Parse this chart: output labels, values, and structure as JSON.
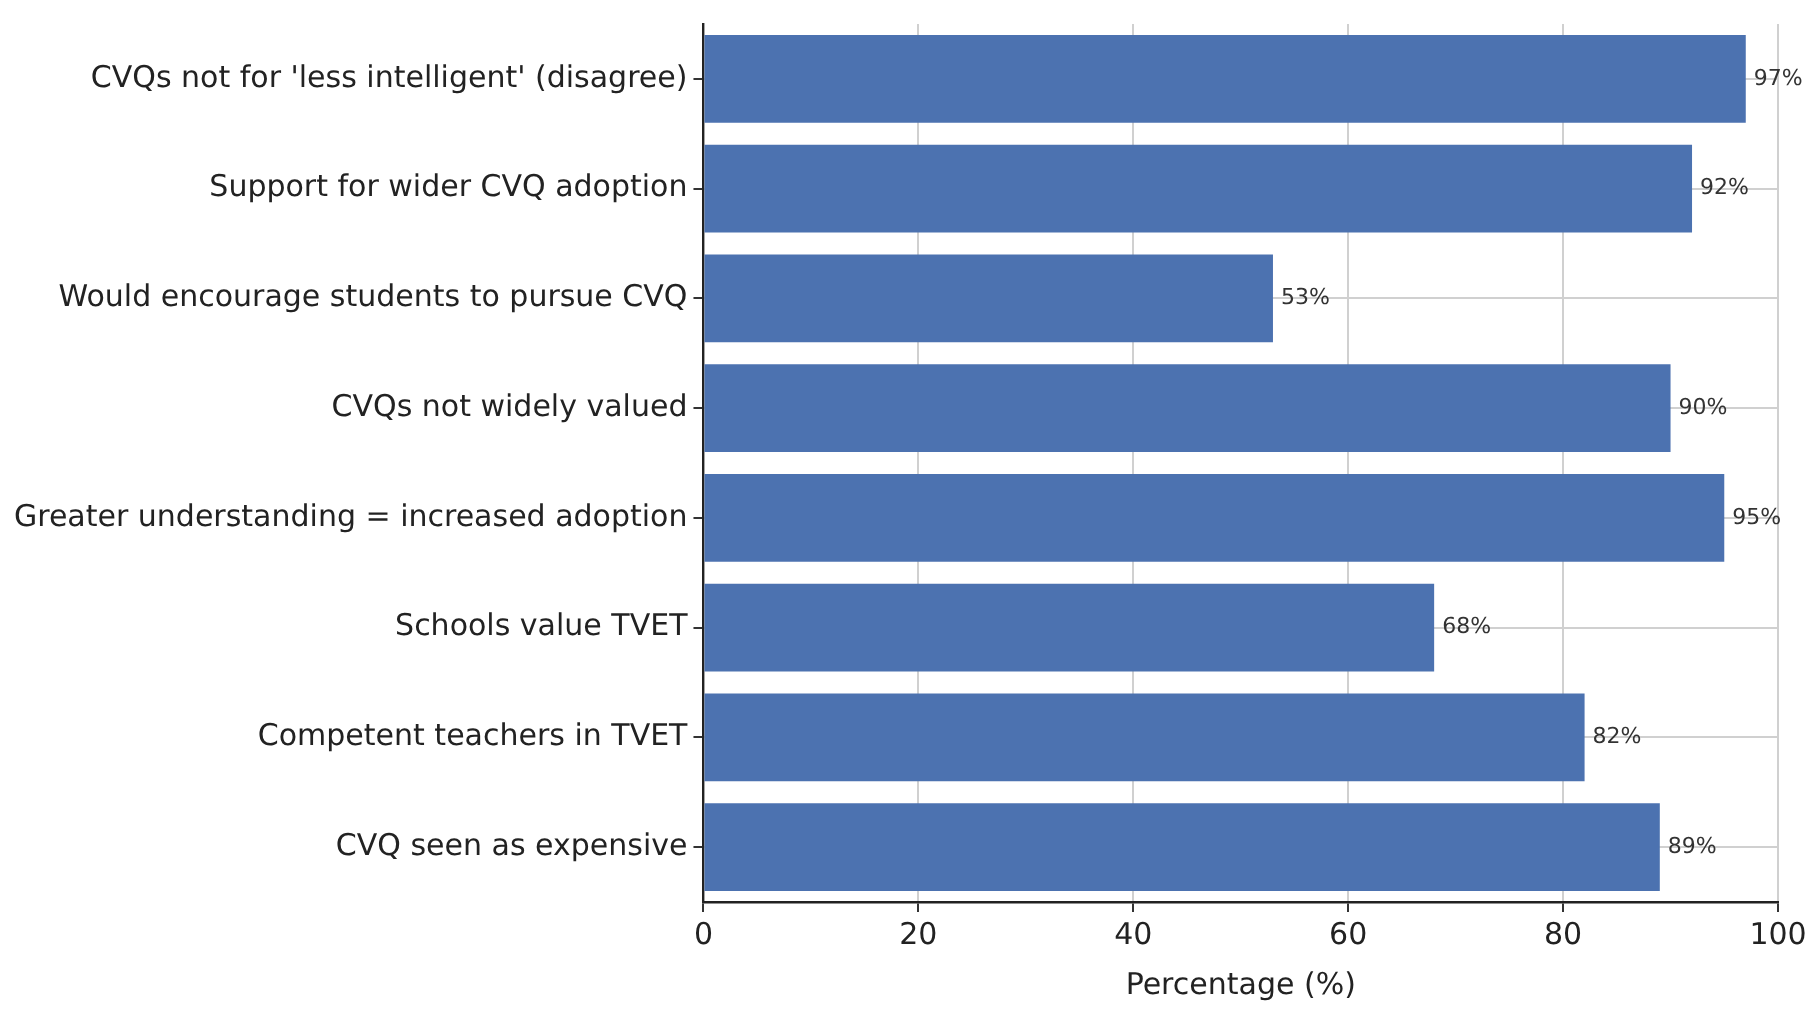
{
  "chart_data": {
    "type": "bar",
    "orientation": "horizontal",
    "xlabel": "Percentage (%)",
    "categories": [
      "CVQs not for 'less intelligent' (disagree)",
      "Support for wider CVQ adoption",
      "Would encourage students to pursue CVQ",
      "CVQs not widely valued",
      "Greater understanding = increased adoption",
      "Schools value TVET",
      "Competent teachers in TVET",
      "CVQ seen as expensive"
    ],
    "values": [
      97,
      92,
      53,
      90,
      95,
      68,
      82,
      89
    ],
    "value_labels": [
      "97%",
      "92%",
      "53%",
      "90%",
      "95%",
      "68%",
      "82%",
      "89%"
    ],
    "color": "#4c72b0",
    "xlim": [
      0,
      100
    ],
    "xticks": [
      0,
      20,
      40,
      60,
      80,
      100
    ],
    "grid": true
  }
}
